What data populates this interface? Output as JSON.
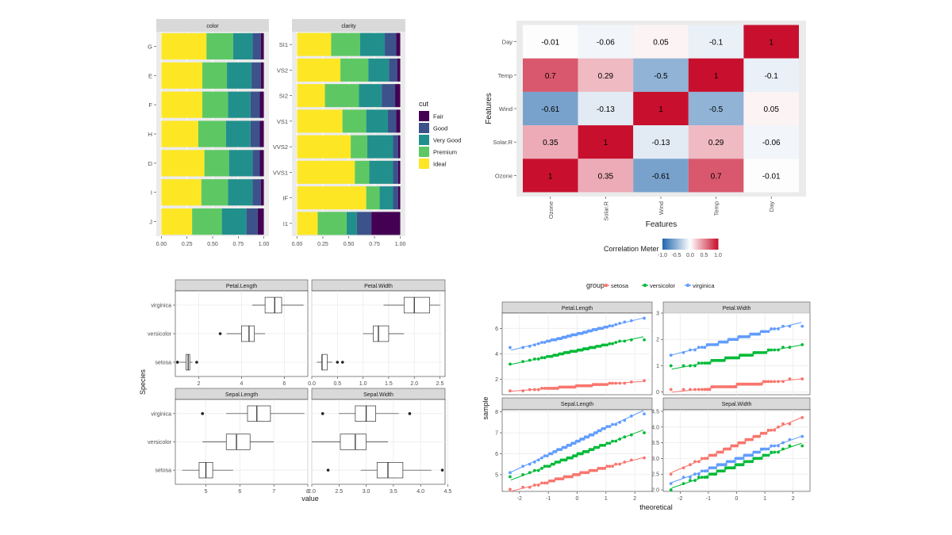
{
  "colors": {
    "viridis": [
      "#440154",
      "#3b528b",
      "#21908c",
      "#5dc863",
      "#fde725"
    ],
    "panel_bg": "#ebebeb",
    "strip_bg": "#d9d9d9",
    "grid": "#ffffff",
    "lightgrid": "#ebebeb",
    "iris": {
      "setosa": "#f8766d",
      "versicolor": "#00ba38",
      "virginica": "#619cff"
    },
    "corr_low": "#2166ac",
    "corr_mid": "#ffffff",
    "corr_high": "#c8102e"
  },
  "chart_data": [
    {
      "type": "bar",
      "subtype": "stacked-proportion-horizontal-facets",
      "facets": [
        {
          "title": "color",
          "categories": [
            "G",
            "E",
            "F",
            "H",
            "D",
            "I",
            "J"
          ],
          "series": [
            {
              "name": "Ideal",
              "values": [
                0.44,
                0.4,
                0.4,
                0.36,
                0.42,
                0.39,
                0.3
              ]
            },
            {
              "name": "Premium",
              "values": [
                0.26,
                0.24,
                0.25,
                0.27,
                0.24,
                0.26,
                0.29
              ]
            },
            {
              "name": "Very Good",
              "values": [
                0.19,
                0.24,
                0.22,
                0.24,
                0.23,
                0.24,
                0.24
              ]
            },
            {
              "name": "Good",
              "values": [
                0.08,
                0.09,
                0.09,
                0.09,
                0.07,
                0.08,
                0.11
              ]
            },
            {
              "name": "Fair",
              "values": [
                0.03,
                0.03,
                0.04,
                0.04,
                0.04,
                0.03,
                0.06
              ]
            }
          ]
        },
        {
          "title": "clarity",
          "categories": [
            "SI1",
            "VS2",
            "SI2",
            "VS1",
            "VVS2",
            "VVS1",
            "IF",
            "I1"
          ],
          "series": [
            {
              "name": "Ideal",
              "values": [
                0.33,
                0.42,
                0.27,
                0.44,
                0.52,
                0.56,
                0.67,
                0.2
              ]
            },
            {
              "name": "Premium",
              "values": [
                0.28,
                0.27,
                0.33,
                0.23,
                0.16,
                0.14,
                0.13,
                0.28
              ]
            },
            {
              "name": "Very Good",
              "values": [
                0.24,
                0.2,
                0.22,
                0.21,
                0.25,
                0.23,
                0.13,
                0.1
              ]
            },
            {
              "name": "Good",
              "values": [
                0.11,
                0.08,
                0.13,
                0.08,
                0.05,
                0.05,
                0.05,
                0.14
              ]
            },
            {
              "name": "Fair",
              "values": [
                0.04,
                0.03,
                0.05,
                0.04,
                0.02,
                0.02,
                0.02,
                0.28
              ]
            }
          ]
        }
      ],
      "xticks": [
        "0.00",
        "0.25",
        "0.50",
        "0.75",
        "1.00"
      ],
      "xlim": [
        0,
        1
      ],
      "legend": {
        "title": "cut",
        "items": [
          "Fair",
          "Good",
          "Very Good",
          "Premium",
          "Ideal"
        ],
        "position": "right"
      }
    },
    {
      "type": "heatmap",
      "features": [
        "Ozone",
        "Solar.R",
        "Wind",
        "Temp",
        "Day"
      ],
      "matrix": [
        [
          1,
          0.35,
          -0.61,
          0.7,
          -0.01
        ],
        [
          0.35,
          1,
          -0.13,
          0.29,
          -0.06
        ],
        [
          -0.61,
          -0.13,
          1,
          -0.5,
          0.05
        ],
        [
          0.7,
          0.29,
          -0.5,
          1,
          -0.1
        ],
        [
          -0.01,
          -0.06,
          0.05,
          -0.1,
          1
        ]
      ],
      "xlabel": "Features",
      "ylabel": "Features",
      "legend_title": "Correlation Meter",
      "legend_ticks": [
        "-1.0",
        "-0.5",
        "0.0",
        "0.5",
        "1.0"
      ],
      "range": [
        -1,
        1
      ],
      "legend_position": "bottom"
    },
    {
      "type": "boxplot",
      "groups": [
        "setosa",
        "versicolor",
        "virginica"
      ],
      "xlabel": "value",
      "ylabel": "Species",
      "facets": [
        {
          "title": "Petal.Length",
          "xlim": [
            0.9,
            7.1
          ],
          "xticks": [
            2,
            4,
            6
          ],
          "boxes": {
            "setosa": [
              1.1,
              1.4,
              1.5,
              1.575,
              1.7
            ],
            "versicolor": [
              3.3,
              4.0,
              4.35,
              4.6,
              5.1
            ],
            "virginica": [
              4.5,
              5.1,
              5.55,
              5.875,
              6.9
            ]
          },
          "outliers": {
            "setosa": [
              1.0,
              1.0,
              1.9
            ],
            "versicolor": [
              3.0
            ],
            "virginica": []
          }
        },
        {
          "title": "Petal.Width",
          "xlim": [
            0,
            2.6
          ],
          "xticks": [
            0.0,
            0.5,
            1.0,
            1.5,
            2.0,
            2.5
          ],
          "boxes": {
            "setosa": [
              0.1,
              0.2,
              0.2,
              0.3,
              0.4
            ],
            "versicolor": [
              1.0,
              1.2,
              1.3,
              1.5,
              1.8
            ],
            "virginica": [
              1.4,
              1.8,
              2.0,
              2.3,
              2.5
            ]
          },
          "outliers": {
            "setosa": [
              0.5,
              0.6
            ],
            "versicolor": [],
            "virginica": []
          }
        },
        {
          "title": "Sepal.Length",
          "xlim": [
            4.1,
            8.0
          ],
          "xticks": [
            5,
            6,
            7,
            8
          ],
          "boxes": {
            "setosa": [
              4.3,
              4.8,
              5.0,
              5.2,
              5.8
            ],
            "versicolor": [
              4.9,
              5.6,
              5.9,
              6.3,
              7.0
            ],
            "virginica": [
              5.6,
              6.225,
              6.5,
              6.9,
              7.9
            ]
          },
          "outliers": {
            "setosa": [],
            "versicolor": [],
            "virginica": [
              4.9
            ]
          }
        },
        {
          "title": "Sepal.Width",
          "xlim": [
            2.0,
            4.45
          ],
          "xticks": [
            2.0,
            2.5,
            3.0,
            3.5,
            4.0,
            4.5
          ],
          "boxes": {
            "setosa": [
              2.9,
              3.2,
              3.4,
              3.675,
              4.2
            ],
            "versicolor": [
              2.0,
              2.525,
              2.8,
              3.0,
              3.4
            ],
            "virginica": [
              2.5,
              2.8,
              3.0,
              3.175,
              3.6
            ]
          },
          "outliers": {
            "setosa": [
              2.3,
              4.4
            ],
            "versicolor": [],
            "virginica": [
              2.2,
              3.8
            ]
          }
        }
      ]
    },
    {
      "type": "scatter",
      "subtype": "qq-plot-facets",
      "xlabel": "theoretical",
      "ylabel": "sample",
      "legend": {
        "title": "group",
        "items": [
          "setosa",
          "versicolor",
          "virginica"
        ],
        "position": "top"
      },
      "xlim": [
        -2.6,
        2.6
      ],
      "xticks": [
        -2,
        -1,
        0,
        1,
        2
      ],
      "facets": [
        {
          "title": "Petal.Length",
          "ylim": [
            0.8,
            7.2
          ],
          "yticks": [
            2,
            4,
            6
          ],
          "params": {
            "setosa": {
              "mean": 1.46,
              "sd": 0.17,
              "min": 1.0,
              "max": 1.9
            },
            "versicolor": {
              "mean": 4.26,
              "sd": 0.47,
              "min": 3.0,
              "max": 5.1
            },
            "virginica": {
              "mean": 5.55,
              "sd": 0.55,
              "min": 4.5,
              "max": 6.9
            }
          }
        },
        {
          "title": "Petal.Width",
          "ylim": [
            -0.1,
            3.0
          ],
          "yticks": [
            0,
            1,
            2,
            3
          ],
          "params": {
            "setosa": {
              "mean": 0.25,
              "sd": 0.11,
              "min": 0.1,
              "max": 0.6
            },
            "versicolor": {
              "mean": 1.33,
              "sd": 0.2,
              "min": 1.0,
              "max": 1.8
            },
            "virginica": {
              "mean": 2.03,
              "sd": 0.27,
              "min": 1.4,
              "max": 2.5
            }
          }
        },
        {
          "title": "Sepal.Length",
          "ylim": [
            4.2,
            8.1
          ],
          "yticks": [
            5,
            6,
            7,
            8
          ],
          "params": {
            "setosa": {
              "mean": 5.01,
              "sd": 0.35,
              "min": 4.3,
              "max": 5.8
            },
            "versicolor": {
              "mean": 5.94,
              "sd": 0.52,
              "min": 4.9,
              "max": 7.0
            },
            "virginica": {
              "mean": 6.59,
              "sd": 0.64,
              "min": 4.9,
              "max": 7.9
            }
          }
        },
        {
          "title": "Sepal.Width",
          "ylim": [
            1.95,
            4.55
          ],
          "yticks": [
            2.0,
            2.5,
            3.0,
            3.5,
            4.0,
            4.5
          ],
          "params": {
            "setosa": {
              "mean": 3.43,
              "sd": 0.38,
              "min": 2.3,
              "max": 4.4
            },
            "versicolor": {
              "mean": 2.77,
              "sd": 0.31,
              "min": 2.0,
              "max": 3.4
            },
            "virginica": {
              "mean": 2.97,
              "sd": 0.32,
              "min": 2.2,
              "max": 3.8
            }
          }
        }
      ]
    }
  ]
}
